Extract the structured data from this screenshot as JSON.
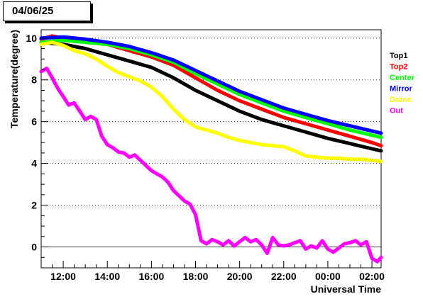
{
  "date_label": "04/06/25",
  "chart_data": {
    "type": "line",
    "title": "",
    "xlabel": "Universal Time",
    "ylabel": "Temperature(degree)",
    "xlim": [
      "11:00",
      "02:25"
    ],
    "ylim": [
      -1.0,
      10.4
    ],
    "x_tick_labels": [
      "12:00",
      "14:00",
      "16:00",
      "18:00",
      "20:00",
      "22:00",
      "00:00",
      "02:00"
    ],
    "y_tick_labels": [
      "0",
      "2",
      "4",
      "6",
      "8",
      "10"
    ],
    "y_ticks": [
      0,
      2,
      4,
      6,
      8,
      10
    ],
    "grid": "horizontal dotted at labeled y ticks",
    "legend_placement": "right",
    "series": [
      {
        "name": "Top1",
        "color": "#000000",
        "x": [
          "11:00",
          "12:00",
          "13:00",
          "14:00",
          "15:00",
          "16:00",
          "17:00",
          "18:00",
          "19:00",
          "20:00",
          "21:00",
          "22:00",
          "23:00",
          "00:00",
          "01:00",
          "02:00",
          "02:25"
        ],
        "y": [
          9.8,
          9.7,
          9.5,
          9.2,
          8.9,
          8.6,
          8.1,
          7.5,
          7.0,
          6.5,
          6.1,
          5.8,
          5.5,
          5.2,
          4.95,
          4.7,
          4.6
        ]
      },
      {
        "name": "Top2",
        "color": "#ff0000",
        "x": [
          "11:00",
          "11:30",
          "12:00",
          "13:00",
          "14:00",
          "15:00",
          "16:00",
          "17:00",
          "18:00",
          "19:00",
          "20:00",
          "21:00",
          "22:00",
          "23:00",
          "00:00",
          "01:00",
          "02:00",
          "02:25"
        ],
        "y": [
          9.95,
          10.1,
          10.0,
          9.9,
          9.7,
          9.4,
          9.1,
          8.7,
          8.1,
          7.5,
          7.0,
          6.6,
          6.2,
          5.9,
          5.6,
          5.3,
          5.0,
          4.85
        ]
      },
      {
        "name": "Center",
        "color": "#00ff00",
        "x": [
          "11:00",
          "12:00",
          "13:00",
          "14:00",
          "15:00",
          "16:00",
          "17:00",
          "18:00",
          "19:00",
          "20:00",
          "21:00",
          "22:00",
          "23:00",
          "00:00",
          "01:00",
          "02:00",
          "02:25"
        ],
        "y": [
          9.8,
          9.9,
          9.8,
          9.7,
          9.5,
          9.2,
          8.85,
          8.3,
          7.8,
          7.3,
          6.9,
          6.5,
          6.2,
          5.9,
          5.6,
          5.35,
          5.25
        ]
      },
      {
        "name": "Mirror",
        "color": "#0000ff",
        "x": [
          "11:00",
          "12:00",
          "13:00",
          "14:00",
          "15:00",
          "16:00",
          "17:00",
          "18:00",
          "19:00",
          "20:00",
          "21:00",
          "22:00",
          "23:00",
          "00:00",
          "01:00",
          "02:00",
          "02:25"
        ],
        "y": [
          10.0,
          10.05,
          9.95,
          9.8,
          9.6,
          9.3,
          8.95,
          8.45,
          7.95,
          7.45,
          7.05,
          6.65,
          6.35,
          6.05,
          5.8,
          5.55,
          5.45
        ]
      },
      {
        "name": "Dome",
        "color": "#ffff00",
        "x": [
          "11:00",
          "11:30",
          "12:00",
          "12:30",
          "13:00",
          "13:30",
          "14:00",
          "14:30",
          "15:00",
          "15:30",
          "16:00",
          "16:30",
          "17:00",
          "17:30",
          "18:00",
          "18:30",
          "19:00",
          "19:30",
          "20:00",
          "20:30",
          "21:00",
          "21:30",
          "22:00",
          "22:30",
          "23:00",
          "23:30",
          "00:00",
          "00:30",
          "01:00",
          "01:30",
          "02:00",
          "02:25"
        ],
        "y": [
          9.7,
          9.8,
          9.65,
          9.4,
          9.25,
          9.0,
          8.65,
          8.35,
          8.15,
          7.95,
          7.65,
          7.2,
          6.6,
          6.1,
          5.75,
          5.6,
          5.45,
          5.25,
          5.1,
          5.0,
          4.9,
          4.85,
          4.8,
          4.6,
          4.35,
          4.3,
          4.25,
          4.25,
          4.2,
          4.2,
          4.15,
          4.1
        ]
      },
      {
        "name": "Out",
        "color": "#ff00ff",
        "x": [
          "11:00",
          "11:15",
          "11:30",
          "11:45",
          "12:00",
          "12:15",
          "12:30",
          "12:45",
          "13:00",
          "13:15",
          "13:30",
          "13:45",
          "14:00",
          "14:15",
          "14:30",
          "14:45",
          "15:00",
          "15:15",
          "15:30",
          "15:45",
          "16:00",
          "16:15",
          "16:30",
          "16:45",
          "17:00",
          "17:15",
          "17:30",
          "17:45",
          "18:00",
          "18:15",
          "18:30",
          "18:45",
          "19:00",
          "19:15",
          "19:30",
          "19:45",
          "20:00",
          "20:15",
          "20:30",
          "20:45",
          "21:00",
          "21:15",
          "21:30",
          "21:45",
          "22:00",
          "22:15",
          "22:30",
          "22:45",
          "23:00",
          "23:15",
          "23:30",
          "23:45",
          "00:00",
          "00:15",
          "00:30",
          "00:45",
          "01:00",
          "01:15",
          "01:30",
          "01:45",
          "02:00",
          "02:15",
          "02:25"
        ],
        "y": [
          8.4,
          8.55,
          8.1,
          7.6,
          7.2,
          6.8,
          6.9,
          6.5,
          6.1,
          6.25,
          6.1,
          5.3,
          4.9,
          4.75,
          4.55,
          4.5,
          4.3,
          4.4,
          4.15,
          3.9,
          3.65,
          3.5,
          3.35,
          3.1,
          2.7,
          2.45,
          2.2,
          2.05,
          1.55,
          0.3,
          0.15,
          0.35,
          0.25,
          0.1,
          0.3,
          0.05,
          0.25,
          0.45,
          0.25,
          0.35,
          0.1,
          -0.3,
          0.45,
          0.1,
          0.05,
          0.1,
          0.2,
          0.3,
          -0.1,
          0.05,
          -0.05,
          0.3,
          -0.1,
          -0.25,
          -0.05,
          0.15,
          0.2,
          0.3,
          0.1,
          0.25,
          -0.55,
          -0.7,
          -0.5
        ]
      }
    ]
  }
}
